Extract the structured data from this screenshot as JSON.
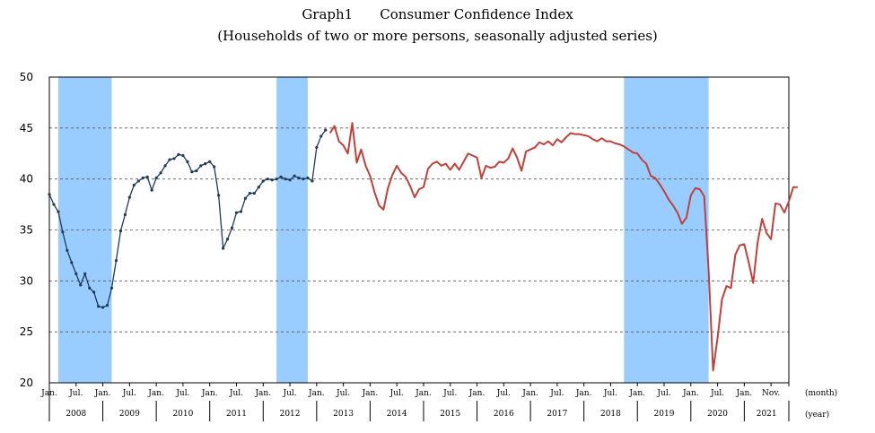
{
  "chart_data": {
    "type": "line",
    "title": "Graph1  Consumer Confidence Index",
    "subtitle": "(Households of two or more persons, seasonally adjusted series)",
    "x_unit_month": "(month)",
    "x_unit_year": "(year)",
    "ylim": [
      20,
      50
    ],
    "yticks": [
      20,
      25,
      30,
      35,
      40,
      45,
      50
    ],
    "grid": "horizontal dashed",
    "x_start": "2008-01",
    "x_end": "2021-11",
    "month_tick_labels": [
      "Jan.",
      "Jul.",
      "Jan.",
      "Jul.",
      "Jan.",
      "Jul.",
      "Jan.",
      "Jul.",
      "Jan.",
      "Jul.",
      "Jan.",
      "Jul.",
      "Jan.",
      "Jul.",
      "Jan.",
      "Jul.",
      "Jan.",
      "Jul.",
      "Jan.",
      "Jul.",
      "Jan.",
      "Jul.",
      "Jan.",
      "Jul.",
      "Jan.",
      "Jul.",
      "Jan.",
      "Nov."
    ],
    "year_labels": [
      "2008",
      "2009",
      "2010",
      "2011",
      "2012",
      "2013",
      "2014",
      "2015",
      "2016",
      "2017",
      "2018",
      "2019",
      "2020",
      "2021"
    ],
    "shaded_periods": [
      {
        "start": "2008-03",
        "end": "2009-03"
      },
      {
        "start": "2012-04",
        "end": "2012-11"
      },
      {
        "start": "2018-10",
        "end": "2020-05"
      }
    ],
    "series": [
      {
        "color": "#1f3a5a",
        "marker": "dot",
        "start": "2008-01",
        "values": [
          38.5,
          37.5,
          36.8,
          34.8,
          33.0,
          31.8,
          30.7,
          29.6,
          30.7,
          29.3,
          28.9,
          27.5,
          27.4,
          27.6,
          29.3,
          32.0,
          34.9,
          36.5,
          38.2,
          39.4,
          39.8,
          40.1,
          40.2,
          38.9,
          40.1,
          40.6,
          41.3,
          41.9,
          42.0,
          42.4,
          42.3,
          41.7,
          40.7,
          40.8,
          41.3,
          41.5,
          41.7,
          41.2,
          38.4,
          33.2,
          34.1,
          35.2,
          36.7,
          36.8,
          38.1,
          38.6,
          38.6,
          39.2,
          39.8,
          40.0,
          39.9,
          40.0,
          40.2,
          40.0,
          39.9,
          40.3,
          40.1,
          40.0,
          40.1,
          39.8,
          43.1,
          44.2,
          44.8
        ]
      },
      {
        "color": "#c0413b",
        "marker": "none",
        "start": "2013-04",
        "values": [
          44.5,
          45.2,
          43.7,
          43.3,
          42.5,
          45.5,
          41.6,
          42.9,
          41.3,
          40.3,
          38.7,
          37.4,
          37.0,
          39.1,
          40.4,
          41.3,
          40.6,
          40.2,
          39.3,
          38.2,
          39.0,
          39.2,
          41.0,
          41.5,
          41.7,
          41.3,
          41.5,
          40.9,
          41.5,
          40.9,
          41.7,
          42.5,
          42.3,
          42.1,
          40.1,
          41.3,
          41.1,
          41.2,
          41.7,
          41.6,
          42.0,
          43.0,
          42.1,
          40.8,
          42.7,
          42.9,
          43.1,
          43.6,
          43.4,
          43.7,
          43.3,
          43.9,
          43.6,
          44.1,
          44.5,
          44.4,
          44.4,
          44.3,
          44.2,
          43.9,
          43.7,
          44.0,
          43.7,
          43.7,
          43.5,
          43.4,
          43.2,
          42.9,
          42.6,
          42.5,
          41.9,
          41.5,
          40.3,
          40.1,
          39.5,
          38.8,
          38.0,
          37.4,
          36.7,
          35.6,
          36.2,
          38.4,
          39.1,
          39.0,
          38.3,
          31.0,
          21.2,
          24.4,
          28.2,
          29.5,
          29.3,
          32.6,
          33.5,
          33.6,
          31.8,
          29.8,
          33.8,
          36.1,
          34.7,
          34.1,
          37.6,
          37.5,
          36.7,
          37.8,
          39.2,
          39.2
        ]
      }
    ]
  }
}
